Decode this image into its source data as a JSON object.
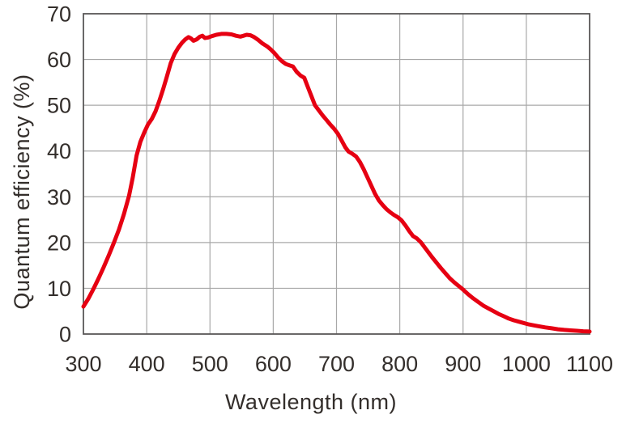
{
  "chart_data": {
    "type": "line",
    "xlabel": "Wavelength (nm)",
    "ylabel": "Quantum efficiency (%)",
    "xlim": [
      300,
      1100
    ],
    "ylim": [
      0,
      70
    ],
    "x_ticks": [
      300,
      400,
      500,
      600,
      700,
      800,
      900,
      1000,
      1100
    ],
    "y_ticks": [
      0,
      10,
      20,
      30,
      40,
      50,
      60,
      70
    ],
    "grid": true,
    "legend": "none",
    "series": [
      {
        "points": [
          [
            300,
            6.0
          ],
          [
            308,
            7.8
          ],
          [
            316,
            9.9
          ],
          [
            324,
            12.2
          ],
          [
            332,
            14.6
          ],
          [
            340,
            17.2
          ],
          [
            348,
            19.9
          ],
          [
            356,
            22.8
          ],
          [
            364,
            26.2
          ],
          [
            372,
            30.2
          ],
          [
            378,
            34.2
          ],
          [
            384,
            39.0
          ],
          [
            390,
            42.0
          ],
          [
            396,
            44.0
          ],
          [
            402,
            45.8
          ],
          [
            408,
            47.0
          ],
          [
            414,
            48.7
          ],
          [
            420,
            51.0
          ],
          [
            426,
            53.5
          ],
          [
            432,
            56.3
          ],
          [
            438,
            59.2
          ],
          [
            444,
            61.2
          ],
          [
            450,
            62.6
          ],
          [
            456,
            63.7
          ],
          [
            461,
            64.4
          ],
          [
            466,
            64.9
          ],
          [
            470,
            64.6
          ],
          [
            474,
            64.1
          ],
          [
            479,
            64.4
          ],
          [
            484,
            65.0
          ],
          [
            488,
            65.2
          ],
          [
            492,
            64.7
          ],
          [
            497,
            64.8
          ],
          [
            503,
            65.1
          ],
          [
            510,
            65.4
          ],
          [
            518,
            65.6
          ],
          [
            526,
            65.6
          ],
          [
            534,
            65.5
          ],
          [
            541,
            65.2
          ],
          [
            548,
            65.0
          ],
          [
            553,
            65.2
          ],
          [
            558,
            65.4
          ],
          [
            564,
            65.3
          ],
          [
            570,
            64.9
          ],
          [
            576,
            64.3
          ],
          [
            583,
            63.5
          ],
          [
            590,
            62.9
          ],
          [
            596,
            62.2
          ],
          [
            602,
            61.4
          ],
          [
            608,
            60.4
          ],
          [
            614,
            59.6
          ],
          [
            620,
            59.0
          ],
          [
            626,
            58.7
          ],
          [
            631,
            58.5
          ],
          [
            637,
            57.3
          ],
          [
            643,
            56.5
          ],
          [
            649,
            56.0
          ],
          [
            655,
            53.9
          ],
          [
            660,
            52.1
          ],
          [
            666,
            50.0
          ],
          [
            672,
            48.9
          ],
          [
            678,
            47.8
          ],
          [
            684,
            46.8
          ],
          [
            690,
            45.8
          ],
          [
            696,
            44.9
          ],
          [
            702,
            43.8
          ],
          [
            708,
            42.3
          ],
          [
            714,
            40.8
          ],
          [
            719,
            39.9
          ],
          [
            725,
            39.4
          ],
          [
            731,
            38.8
          ],
          [
            737,
            37.6
          ],
          [
            743,
            36.0
          ],
          [
            749,
            34.2
          ],
          [
            755,
            32.4
          ],
          [
            761,
            30.6
          ],
          [
            767,
            29.2
          ],
          [
            773,
            28.2
          ],
          [
            779,
            27.3
          ],
          [
            785,
            26.6
          ],
          [
            791,
            26.0
          ],
          [
            797,
            25.5
          ],
          [
            803,
            24.8
          ],
          [
            809,
            23.7
          ],
          [
            815,
            22.5
          ],
          [
            821,
            21.4
          ],
          [
            827,
            20.9
          ],
          [
            833,
            20.1
          ],
          [
            839,
            19.0
          ],
          [
            845,
            17.9
          ],
          [
            851,
            16.8
          ],
          [
            858,
            15.6
          ],
          [
            865,
            14.4
          ],
          [
            872,
            13.3
          ],
          [
            879,
            12.2
          ],
          [
            886,
            11.3
          ],
          [
            893,
            10.5
          ],
          [
            900,
            9.7
          ],
          [
            908,
            8.7
          ],
          [
            916,
            7.8
          ],
          [
            924,
            7.0
          ],
          [
            932,
            6.2
          ],
          [
            940,
            5.6
          ],
          [
            948,
            5.0
          ],
          [
            956,
            4.4
          ],
          [
            964,
            3.9
          ],
          [
            972,
            3.4
          ],
          [
            980,
            3.0
          ],
          [
            988,
            2.7
          ],
          [
            996,
            2.4
          ],
          [
            1004,
            2.1
          ],
          [
            1012,
            1.9
          ],
          [
            1020,
            1.7
          ],
          [
            1030,
            1.45
          ],
          [
            1040,
            1.25
          ],
          [
            1050,
            1.05
          ],
          [
            1060,
            0.9
          ],
          [
            1070,
            0.8
          ],
          [
            1080,
            0.7
          ],
          [
            1090,
            0.6
          ],
          [
            1100,
            0.55
          ]
        ]
      }
    ]
  },
  "colors": {
    "curve": "#e60012",
    "grid": "#a8a8a8",
    "border": "#595757",
    "text": "#332e2b",
    "background": "#ffffff"
  }
}
